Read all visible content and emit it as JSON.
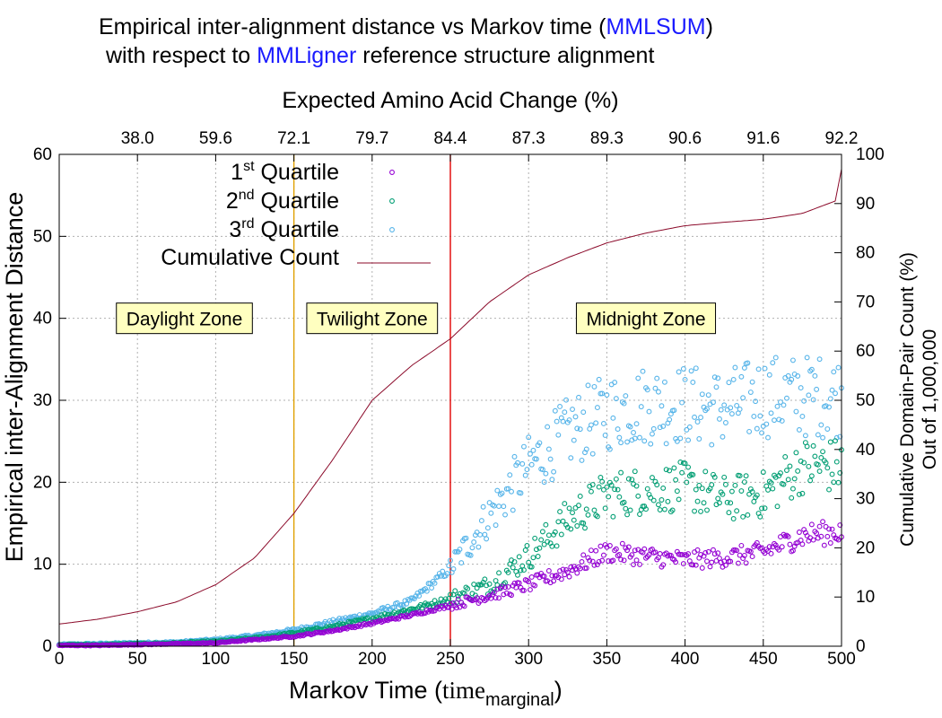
{
  "chart_data": {
    "type": "scatter",
    "title_parts": [
      "Empirical inter-alignment distance vs Markov time (",
      "MMLSUM",
      ")"
    ],
    "subtitle_parts": [
      "with respect to ",
      "MMLigner",
      " reference structure alignment"
    ],
    "title_accent_color": "#1a1aff",
    "xlabel_prefix": "Markov Time (",
    "xlabel_time": "time",
    "xlabel_sub": "marginal",
    "xlabel_suffix": ")",
    "ylabel": "Empirical inter-Alignment Distance",
    "x2label": "Expected Amino Acid Change (%)",
    "y2label_line1": "Cumulative Domain-Pair Count (%)",
    "y2label_line2": "Out of 1,000,000",
    "xlim": [
      0,
      500
    ],
    "ylim": [
      0,
      60
    ],
    "y2lim": [
      0,
      100
    ],
    "xticks": [
      "0",
      "50",
      "100",
      "150",
      "200",
      "250",
      "300",
      "350",
      "400",
      "450",
      "500"
    ],
    "yticks": [
      "0",
      "10",
      "20",
      "30",
      "40",
      "50",
      "60"
    ],
    "y2ticks": [
      "0",
      "10",
      "20",
      "30",
      "40",
      "50",
      "60",
      "70",
      "80",
      "90",
      "100"
    ],
    "x2ticks": [
      {
        "x": 50,
        "label": "38.0"
      },
      {
        "x": 100,
        "label": "59.6"
      },
      {
        "x": 150,
        "label": "72.1"
      },
      {
        "x": 200,
        "label": "79.7"
      },
      {
        "x": 250,
        "label": "84.4"
      },
      {
        "x": 300,
        "label": "87.3"
      },
      {
        "x": 350,
        "label": "89.3"
      },
      {
        "x": 400,
        "label": "90.6"
      },
      {
        "x": 450,
        "label": "91.6"
      },
      {
        "x": 500,
        "label": "92.2"
      }
    ],
    "grid": true,
    "legend_position": "top-left",
    "legend": [
      {
        "base": "1",
        "sup": "st",
        "rest": " Quartile"
      },
      {
        "base": "2",
        "sup": "nd",
        "rest": " Quartile"
      },
      {
        "base": "3",
        "sup": "rd",
        "rest": " Quartile"
      },
      {
        "base": "Cumulative Count",
        "sup": "",
        "rest": ""
      }
    ],
    "colors": {
      "q1": "#9400d3",
      "q2": "#009e73",
      "q3": "#56b4e9",
      "cumulative": "#8b0a2a",
      "twilight_boundary": "#e0a000",
      "midnight_boundary": "#e00000",
      "zone_fill": "#ffffc0"
    },
    "vlines": [
      150,
      250
    ],
    "zones": [
      {
        "label": "Daylight Zone",
        "x": 80
      },
      {
        "label": "Twilight Zone",
        "x": 200
      },
      {
        "label": "Midnight Zone",
        "x": 375
      }
    ],
    "zone_label_y": 40,
    "series": [
      {
        "name": "1st Quartile",
        "x": [
          0,
          25,
          50,
          75,
          100,
          125,
          150,
          175,
          200,
          225,
          250,
          275,
          300,
          325,
          350,
          375,
          400,
          425,
          450,
          475,
          500
        ],
        "y": [
          0.1,
          0.1,
          0.2,
          0.3,
          0.4,
          0.8,
          1.2,
          1.9,
          2.8,
          3.8,
          5.0,
          6.2,
          7.5,
          9.2,
          11.5,
          11.0,
          10.5,
          10.8,
          11.5,
          13.5,
          14.0
        ]
      },
      {
        "name": "2nd Quartile",
        "x": [
          0,
          25,
          50,
          75,
          100,
          125,
          150,
          175,
          200,
          225,
          250,
          275,
          300,
          325,
          350,
          375,
          400,
          425,
          450,
          475,
          500
        ],
        "y": [
          0.2,
          0.2,
          0.3,
          0.4,
          0.6,
          1.0,
          1.6,
          2.4,
          3.4,
          4.5,
          5.8,
          7.5,
          11.0,
          15.5,
          18.5,
          19.0,
          19.5,
          18.0,
          18.5,
          22.0,
          22.0
        ]
      },
      {
        "name": "3rd Quartile",
        "x": [
          0,
          25,
          50,
          75,
          100,
          125,
          150,
          175,
          200,
          225,
          250,
          275,
          300,
          325,
          350,
          375,
          400,
          425,
          450,
          475,
          500
        ],
        "y": [
          0.2,
          0.3,
          0.4,
          0.5,
          0.8,
          1.3,
          2.0,
          3.0,
          4.0,
          5.5,
          9.5,
          16.0,
          22.0,
          26.0,
          28.5,
          29.5,
          29.5,
          29.0,
          30.5,
          30.5,
          30.5
        ]
      },
      {
        "name": "Cumulative Count",
        "x": [
          0,
          25,
          50,
          75,
          100,
          125,
          150,
          175,
          200,
          225,
          250,
          275,
          300,
          325,
          350,
          375,
          400,
          425,
          450,
          475,
          500
        ],
        "y": [
          4.5,
          5.5,
          7,
          9,
          12.5,
          18,
          27,
          38,
          50,
          57,
          62.5,
          70,
          75.5,
          79,
          82,
          84,
          85.5,
          86.2,
          86.8,
          88,
          91
        ]
      }
    ]
  }
}
